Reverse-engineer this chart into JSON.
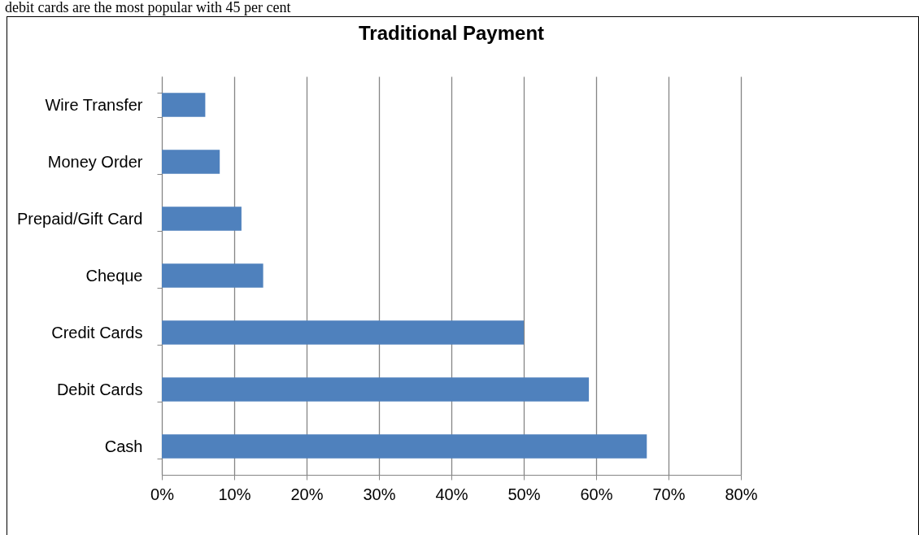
{
  "chart_data": {
    "type": "bar",
    "orientation": "horizontal",
    "title": "Traditional Payment",
    "annotations": [
      "debit cards are the most popular with 45 per cent"
    ],
    "categories": [
      "Wire Transfer",
      "Money Order",
      "Prepaid/Gift Card",
      "Cheque",
      "Credit Cards",
      "Debit Cards",
      "Cash"
    ],
    "values": [
      6,
      8,
      11,
      14,
      50,
      59,
      67
    ],
    "color": "#4f81bd",
    "xlim": [
      0,
      80
    ],
    "xticks": [
      {
        "value": 0,
        "label": "0%"
      },
      {
        "value": 10,
        "label": "10%"
      },
      {
        "value": 20,
        "label": "20%"
      },
      {
        "value": 30,
        "label": "30%"
      },
      {
        "value": 40,
        "label": "40%"
      },
      {
        "value": 50,
        "label": "50%"
      },
      {
        "value": 60,
        "label": "60%"
      },
      {
        "value": 70,
        "label": "70%"
      },
      {
        "value": 80,
        "label": "80%"
      }
    ],
    "grid": "x"
  }
}
